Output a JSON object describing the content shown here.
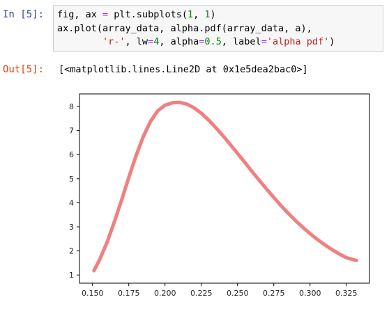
{
  "cell_in": {
    "prompt": "In [5]:",
    "code_lines": [
      [
        {
          "t": "fig, ax ",
          "c": ""
        },
        {
          "t": "=",
          "c": "op"
        },
        {
          "t": " plt.subplots(",
          "c": ""
        },
        {
          "t": "1",
          "c": "num"
        },
        {
          "t": ", ",
          "c": ""
        },
        {
          "t": "1",
          "c": "num"
        },
        {
          "t": ")",
          "c": ""
        }
      ],
      [
        {
          "t": "ax.plot(array_data, alpha.pdf(array_data, a),",
          "c": ""
        }
      ],
      [
        {
          "t": "        ",
          "c": ""
        },
        {
          "t": "'r-'",
          "c": "str"
        },
        {
          "t": ", lw",
          "c": ""
        },
        {
          "t": "=",
          "c": "op"
        },
        {
          "t": "4",
          "c": "num"
        },
        {
          "t": ", alpha",
          "c": ""
        },
        {
          "t": "=",
          "c": "op"
        },
        {
          "t": "0.5",
          "c": "num"
        },
        {
          "t": ", label",
          "c": ""
        },
        {
          "t": "=",
          "c": "op"
        },
        {
          "t": "'alpha pdf'",
          "c": "str"
        },
        {
          "t": ")",
          "c": ""
        }
      ]
    ]
  },
  "cell_out": {
    "prompt": "Out[5]:",
    "text": "[<matplotlib.lines.Line2D at 0x1e5dea2bac0>]"
  },
  "colors": {
    "line": "#f08080",
    "num": "#008800",
    "str": "#ba2121",
    "op": "#aa22ff"
  },
  "chart_data": {
    "type": "line",
    "x_ticks": [
      0.15,
      0.175,
      0.2,
      0.225,
      0.25,
      0.275,
      0.3,
      0.325
    ],
    "x_tick_labels": [
      "0.150",
      "0.175",
      "0.200",
      "0.225",
      "0.250",
      "0.275",
      "0.300",
      "0.325"
    ],
    "y_ticks": [
      1,
      2,
      3,
      4,
      5,
      6,
      7,
      8
    ],
    "y_tick_labels": [
      "1",
      "2",
      "3",
      "4",
      "5",
      "6",
      "7",
      "8"
    ],
    "xlim": [
      0.141,
      0.341
    ],
    "ylim": [
      0.66,
      8.52
    ],
    "grid": false,
    "series": [
      {
        "x": [
          0.151,
          0.155,
          0.16,
          0.165,
          0.17,
          0.175,
          0.18,
          0.185,
          0.19,
          0.195,
          0.2,
          0.205,
          0.21,
          0.215,
          0.22,
          0.225,
          0.23,
          0.235,
          0.24,
          0.245,
          0.25,
          0.255,
          0.26,
          0.265,
          0.27,
          0.275,
          0.28,
          0.285,
          0.29,
          0.295,
          0.3,
          0.305,
          0.31,
          0.315,
          0.32,
          0.325,
          0.332
        ],
        "y": [
          1.18,
          1.65,
          2.35,
          3.2,
          4.1,
          5.05,
          5.95,
          6.75,
          7.38,
          7.82,
          8.05,
          8.15,
          8.17,
          8.1,
          7.94,
          7.72,
          7.44,
          7.12,
          6.78,
          6.42,
          6.05,
          5.68,
          5.3,
          4.93,
          4.57,
          4.22,
          3.88,
          3.56,
          3.26,
          2.98,
          2.72,
          2.48,
          2.26,
          2.06,
          1.88,
          1.72,
          1.6
        ]
      }
    ]
  }
}
